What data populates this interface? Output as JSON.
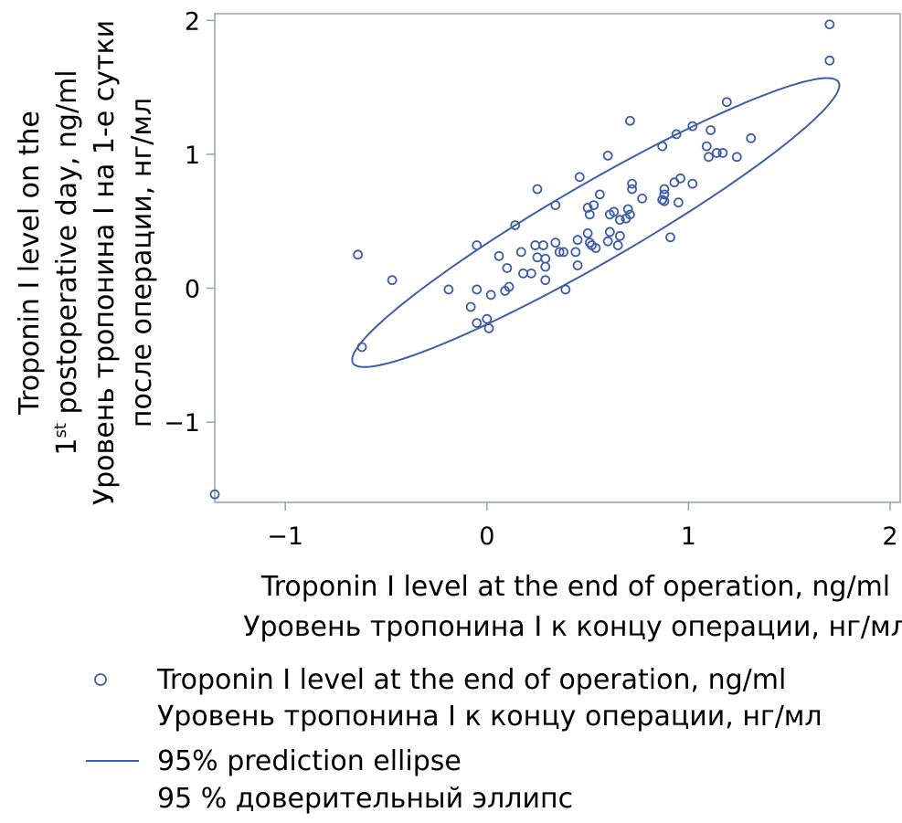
{
  "chart_data": {
    "type": "scatter",
    "title": "",
    "xlabel": [
      "Troponin I level at the end of operation, ng/ml",
      "Уровень тропонина I к концу операции, нг/мл"
    ],
    "ylabel": {
      "line1": "Troponin I level on the",
      "line2_prefix": "1",
      "line2_sup": "st",
      "line2_rest": " postoperative day, ng/ml",
      "line3": "Уровень тропонина I на 1-е сутки",
      "line4": "после операции, нг/мл"
    },
    "xlim": [
      -1.35,
      2.05
    ],
    "ylim": [
      -1.6,
      2.05
    ],
    "xticks": [
      -1,
      0,
      1,
      2
    ],
    "xtick_labels": [
      "−1",
      "0",
      "1",
      "2"
    ],
    "yticks": [
      -1,
      0,
      1,
      2
    ],
    "ytick_labels": [
      "−1",
      "0",
      "1",
      "2"
    ],
    "grid": false,
    "legend_position": "bottom",
    "colors": {
      "series": "#3e5ea8",
      "axis": "#9aa0a6"
    },
    "series": [
      {
        "name": [
          "Troponin I level at the end of operation, ng/ml",
          "Уровень тропонина I к концу операции, нг/мл"
        ],
        "marker": "open-circle",
        "points": [
          [
            -1.35,
            -1.54
          ],
          [
            -0.64,
            0.25
          ],
          [
            -0.62,
            -0.44
          ],
          [
            -0.47,
            0.06
          ],
          [
            -0.19,
            -0.01
          ],
          [
            -0.08,
            -0.14
          ],
          [
            -0.05,
            0.32
          ],
          [
            -0.05,
            -0.01
          ],
          [
            -0.05,
            -0.26
          ],
          [
            0.0,
            -0.23
          ],
          [
            0.01,
            -0.3
          ],
          [
            0.02,
            -0.05
          ],
          [
            0.06,
            0.24
          ],
          [
            0.09,
            -0.02
          ],
          [
            0.1,
            0.15
          ],
          [
            0.11,
            0.01
          ],
          [
            0.14,
            0.47
          ],
          [
            0.17,
            0.27
          ],
          [
            0.18,
            0.11
          ],
          [
            0.22,
            0.11
          ],
          [
            0.24,
            0.32
          ],
          [
            0.25,
            0.74
          ],
          [
            0.25,
            0.23
          ],
          [
            0.28,
            0.32
          ],
          [
            0.29,
            0.22
          ],
          [
            0.29,
            0.06
          ],
          [
            0.29,
            0.16
          ],
          [
            0.34,
            0.62
          ],
          [
            0.34,
            0.34
          ],
          [
            0.36,
            0.27
          ],
          [
            0.38,
            0.27
          ],
          [
            0.39,
            -0.01
          ],
          [
            0.44,
            0.27
          ],
          [
            0.45,
            0.36
          ],
          [
            0.45,
            0.17
          ],
          [
            0.46,
            0.83
          ],
          [
            0.5,
            0.41
          ],
          [
            0.5,
            0.6
          ],
          [
            0.51,
            0.55
          ],
          [
            0.51,
            0.34
          ],
          [
            0.52,
            0.32
          ],
          [
            0.53,
            0.62
          ],
          [
            0.54,
            0.3
          ],
          [
            0.56,
            0.7
          ],
          [
            0.6,
            0.99
          ],
          [
            0.6,
            0.35
          ],
          [
            0.61,
            0.42
          ],
          [
            0.61,
            0.55
          ],
          [
            0.63,
            0.57
          ],
          [
            0.65,
            0.32
          ],
          [
            0.66,
            0.39
          ],
          [
            0.66,
            0.51
          ],
          [
            0.69,
            0.52
          ],
          [
            0.7,
            0.59
          ],
          [
            0.71,
            0.55
          ],
          [
            0.71,
            1.25
          ],
          [
            0.72,
            0.74
          ],
          [
            0.72,
            0.78
          ],
          [
            0.77,
            0.67
          ],
          [
            0.87,
            1.06
          ],
          [
            0.87,
            0.66
          ],
          [
            0.88,
            0.74
          ],
          [
            0.88,
            0.7
          ],
          [
            0.88,
            0.65
          ],
          [
            0.91,
            0.38
          ],
          [
            0.93,
            0.79
          ],
          [
            0.94,
            1.15
          ],
          [
            0.95,
            0.64
          ],
          [
            0.96,
            0.82
          ],
          [
            1.02,
            1.21
          ],
          [
            1.02,
            0.78
          ],
          [
            1.09,
            1.06
          ],
          [
            1.1,
            0.98
          ],
          [
            1.11,
            1.18
          ],
          [
            1.14,
            1.01
          ],
          [
            1.17,
            1.01
          ],
          [
            1.19,
            1.39
          ],
          [
            1.24,
            0.98
          ],
          [
            1.31,
            1.12
          ],
          [
            1.7,
            1.97
          ],
          [
            1.7,
            1.7
          ]
        ]
      },
      {
        "name": [
          "95% prediction ellipse",
          "95 % доверительный эллипс"
        ],
        "type": "ellipse",
        "center": [
          0.54,
          0.49
        ],
        "angle_deg": 41.6,
        "semi_axes": [
          1.6,
          0.255
        ]
      }
    ]
  }
}
